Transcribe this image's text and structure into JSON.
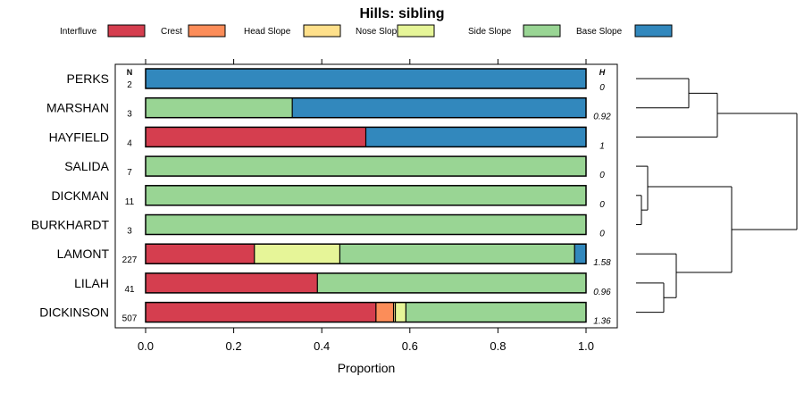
{
  "chart_data": {
    "type": "bar",
    "orientation": "horizontal",
    "stacked": true,
    "title": "Hills: sibling",
    "xlabel": "Proportion",
    "xlim": [
      0,
      1
    ],
    "xticks": [
      "0.0",
      "0.2",
      "0.4",
      "0.6",
      "0.8",
      "1.0"
    ],
    "n_header": "N",
    "h_header": "H",
    "legend": [
      {
        "name": "Interfluve",
        "color": "#d53e4f"
      },
      {
        "name": "Crest",
        "color": "#fc8d59"
      },
      {
        "name": "Head Slope",
        "color": "#fee08b"
      },
      {
        "name": "Nose Slope",
        "color": "#e6f598"
      },
      {
        "name": "Side Slope",
        "color": "#99d594"
      },
      {
        "name": "Base Slope",
        "color": "#3288bd"
      }
    ],
    "rows": [
      {
        "name": "PERKS",
        "n": "2",
        "h": "0",
        "values": [
          0,
          0,
          0,
          0,
          0,
          1
        ]
      },
      {
        "name": "MARSHAN",
        "n": "3",
        "h": "0.92",
        "values": [
          0,
          0,
          0,
          0,
          0.333,
          0.667
        ]
      },
      {
        "name": "HAYFIELD",
        "n": "4",
        "h": "1",
        "values": [
          0.5,
          0,
          0,
          0,
          0,
          0.5
        ]
      },
      {
        "name": "SALIDA",
        "n": "7",
        "h": "0",
        "values": [
          0,
          0,
          0,
          0,
          1,
          0
        ]
      },
      {
        "name": "DICKMAN",
        "n": "11",
        "h": "0",
        "values": [
          0,
          0,
          0,
          0,
          1,
          0
        ]
      },
      {
        "name": "BURKHARDT",
        "n": "3",
        "h": "0",
        "values": [
          0,
          0,
          0,
          0,
          1,
          0
        ]
      },
      {
        "name": "LAMONT",
        "n": "227",
        "h": "1.58",
        "values": [
          0.247,
          0,
          0,
          0.194,
          0.533,
          0.026
        ]
      },
      {
        "name": "LILAH",
        "n": "41",
        "h": "0.96",
        "values": [
          0.39,
          0,
          0,
          0,
          0.61,
          0
        ]
      },
      {
        "name": "DICKINSON",
        "n": "507",
        "h": "1.36",
        "values": [
          0.523,
          0.04,
          0.004,
          0.024,
          0.409,
          0
        ]
      }
    ]
  }
}
